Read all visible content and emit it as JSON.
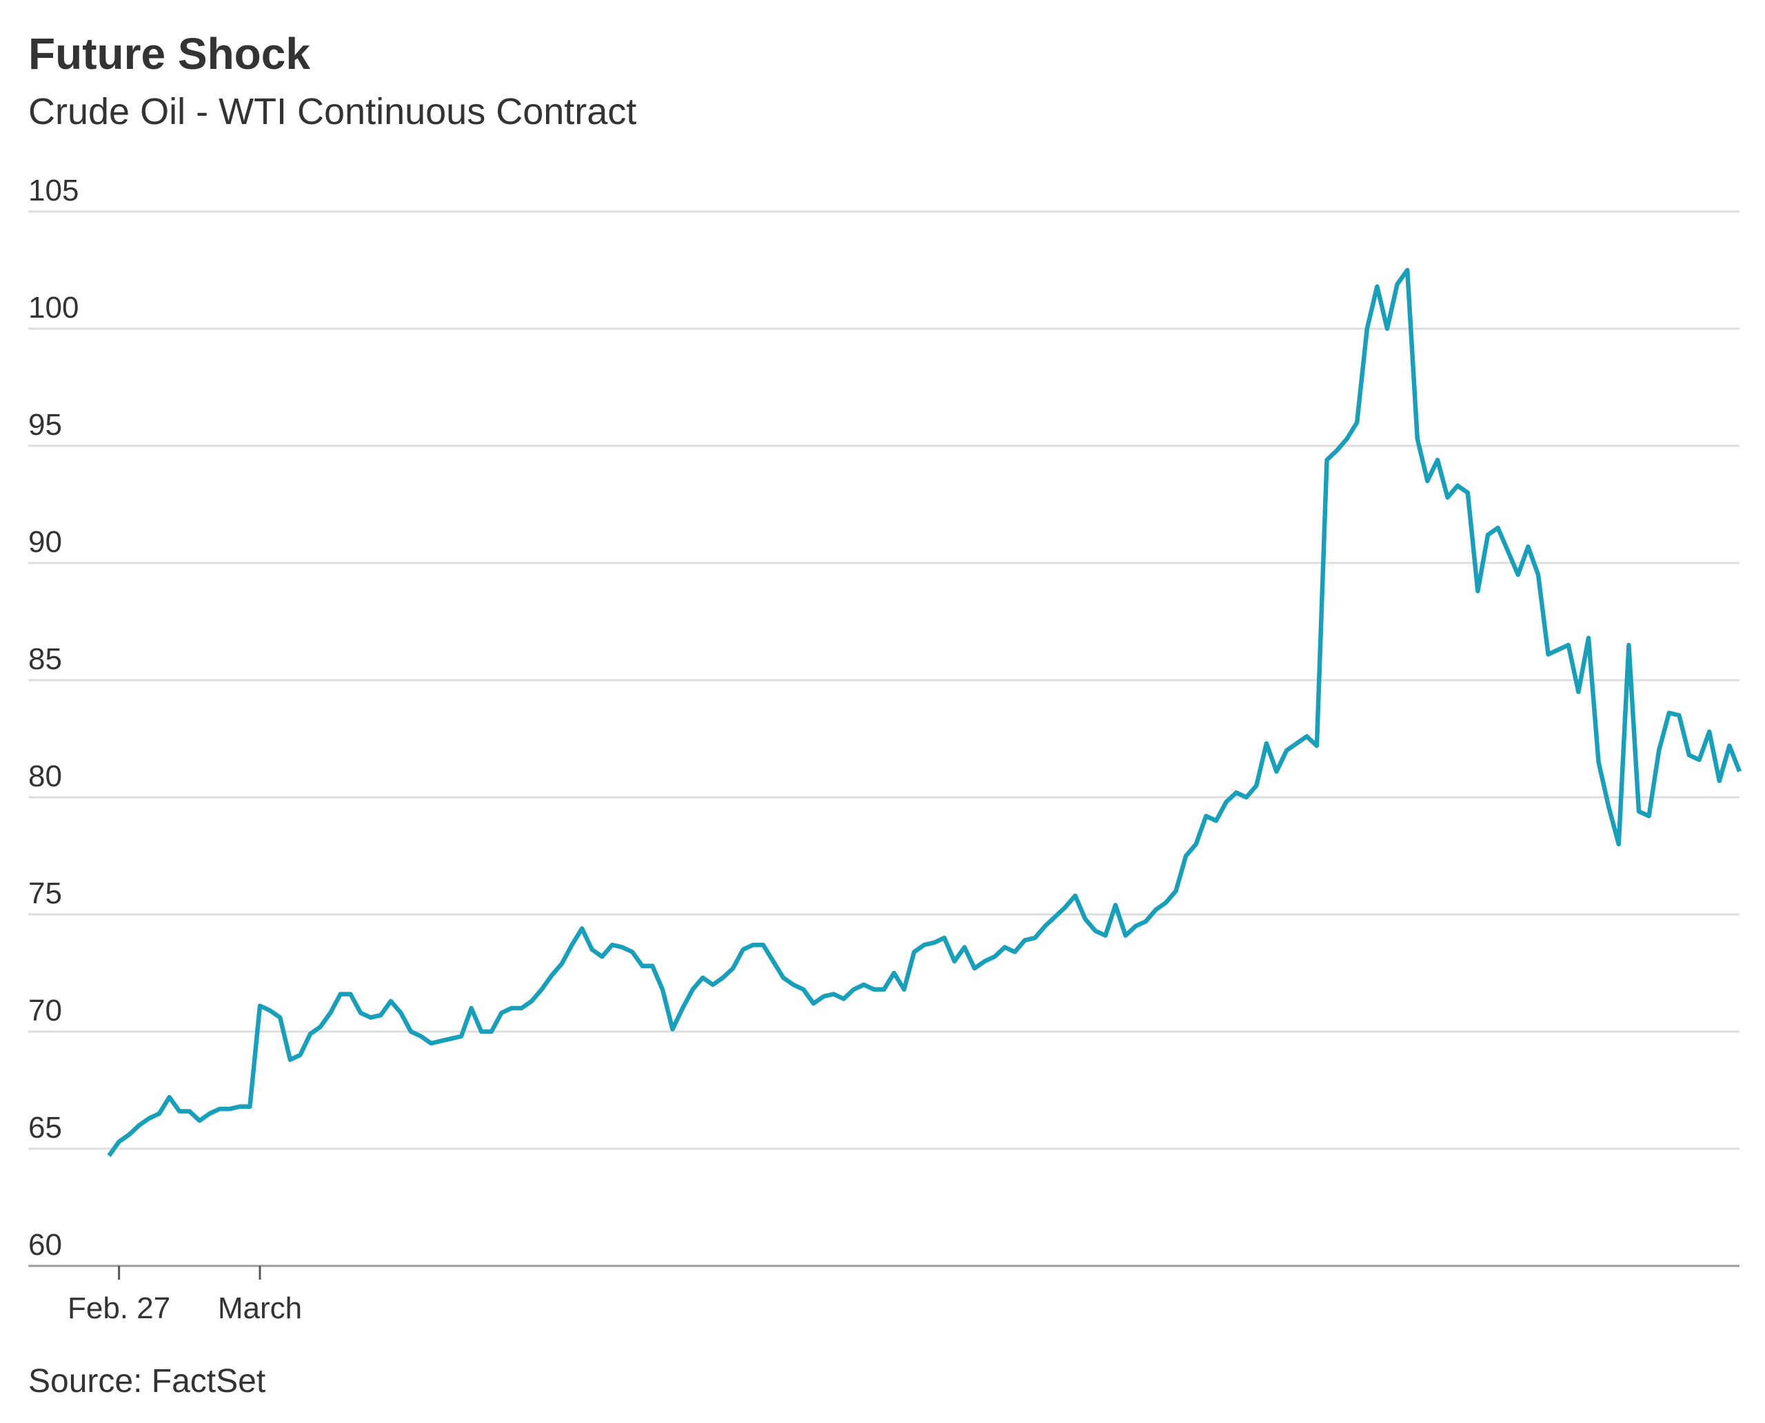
{
  "chart_data": {
    "type": "line",
    "title": "Future Shock",
    "subtitle": "Crude Oil - WTI Continuous Contract",
    "source": "Source: FactSet",
    "categories": [
      null,
      "Feb. 27",
      null,
      null,
      null,
      null,
      null,
      null,
      null,
      null,
      null,
      null,
      null,
      null,
      null,
      "March",
      null,
      null,
      null,
      null,
      null,
      null,
      null,
      null,
      null,
      null,
      null,
      null,
      null,
      null,
      null,
      null,
      null,
      null,
      null,
      null,
      null,
      null,
      null,
      null,
      null,
      null,
      null,
      null,
      null,
      null,
      null,
      null,
      null,
      null,
      null,
      null,
      null,
      null,
      null,
      null,
      null,
      null,
      null,
      null,
      null,
      null,
      null,
      null,
      null,
      null,
      null,
      null,
      null,
      null,
      null,
      null,
      null,
      null,
      null,
      null,
      null,
      null,
      null,
      null,
      null,
      null,
      null,
      null,
      null,
      null,
      null,
      null,
      null,
      null,
      null,
      null,
      null,
      null,
      null,
      null,
      null,
      null,
      null,
      null,
      null,
      null,
      null,
      null,
      null,
      null,
      null,
      null,
      null,
      null,
      null,
      null,
      null,
      null,
      null,
      null,
      null,
      null,
      null,
      null,
      null,
      null,
      null,
      null,
      null,
      null,
      null,
      null,
      null,
      null,
      null,
      null,
      null,
      null,
      null,
      null,
      null,
      null,
      null,
      null,
      null,
      null,
      null,
      null,
      null,
      null,
      null,
      null,
      null,
      null,
      null,
      null,
      null,
      null,
      null,
      null,
      null,
      null,
      null,
      null,
      null,
      null,
      null
    ],
    "series": [
      {
        "name": "Crude Oil - WTI Continuous Contract",
        "color": "#1a9fba",
        "values": [
          64.7,
          65.3,
          65.6,
          66.0,
          66.3,
          66.5,
          67.2,
          66.6,
          66.6,
          66.2,
          66.5,
          66.7,
          66.7,
          66.8,
          66.8,
          71.1,
          70.9,
          70.6,
          68.8,
          69.0,
          69.9,
          70.2,
          70.8,
          71.6,
          71.6,
          70.8,
          70.6,
          70.7,
          71.3,
          70.8,
          70.0,
          69.8,
          69.5,
          69.6,
          69.7,
          69.8,
          71.0,
          70.0,
          70.0,
          70.8,
          71.0,
          71.0,
          71.3,
          71.8,
          72.4,
          72.9,
          73.7,
          74.4,
          73.5,
          73.2,
          73.7,
          73.6,
          73.4,
          72.8,
          72.8,
          71.8,
          70.1,
          71.0,
          71.8,
          72.3,
          72.0,
          72.3,
          72.7,
          73.5,
          73.7,
          73.7,
          73.0,
          72.3,
          72.0,
          71.8,
          71.2,
          71.5,
          71.6,
          71.4,
          71.8,
          72.0,
          71.8,
          71.8,
          72.5,
          71.8,
          73.4,
          73.7,
          73.8,
          74.0,
          73.0,
          73.6,
          72.7,
          73.0,
          73.2,
          73.6,
          73.4,
          73.9,
          74.0,
          74.5,
          74.9,
          75.3,
          75.8,
          74.8,
          74.3,
          74.1,
          75.4,
          74.1,
          74.5,
          74.7,
          75.2,
          75.5,
          76.0,
          77.5,
          78.0,
          79.2,
          79.0,
          79.8,
          80.2,
          80.0,
          80.5,
          82.3,
          81.1,
          82.0,
          82.3,
          82.6,
          82.2,
          94.4,
          94.8,
          95.3,
          96.0,
          100.0,
          101.8,
          100.0,
          101.9,
          102.5,
          95.3,
          93.5,
          94.4,
          92.8,
          93.3,
          93.0,
          88.8,
          91.2,
          91.5,
          90.5,
          89.5,
          90.7,
          89.5,
          86.1,
          86.3,
          86.5,
          84.5,
          86.8,
          81.5,
          79.6,
          78.0,
          86.5,
          79.4,
          79.2,
          82.0,
          83.6,
          83.5,
          81.8,
          81.6,
          82.8,
          80.7,
          82.2,
          81.1
        ]
      }
    ],
    "ylim": [
      60,
      105
    ],
    "yticks": [
      60,
      65,
      70,
      75,
      80,
      85,
      90,
      95,
      100,
      105
    ],
    "grid": true
  }
}
